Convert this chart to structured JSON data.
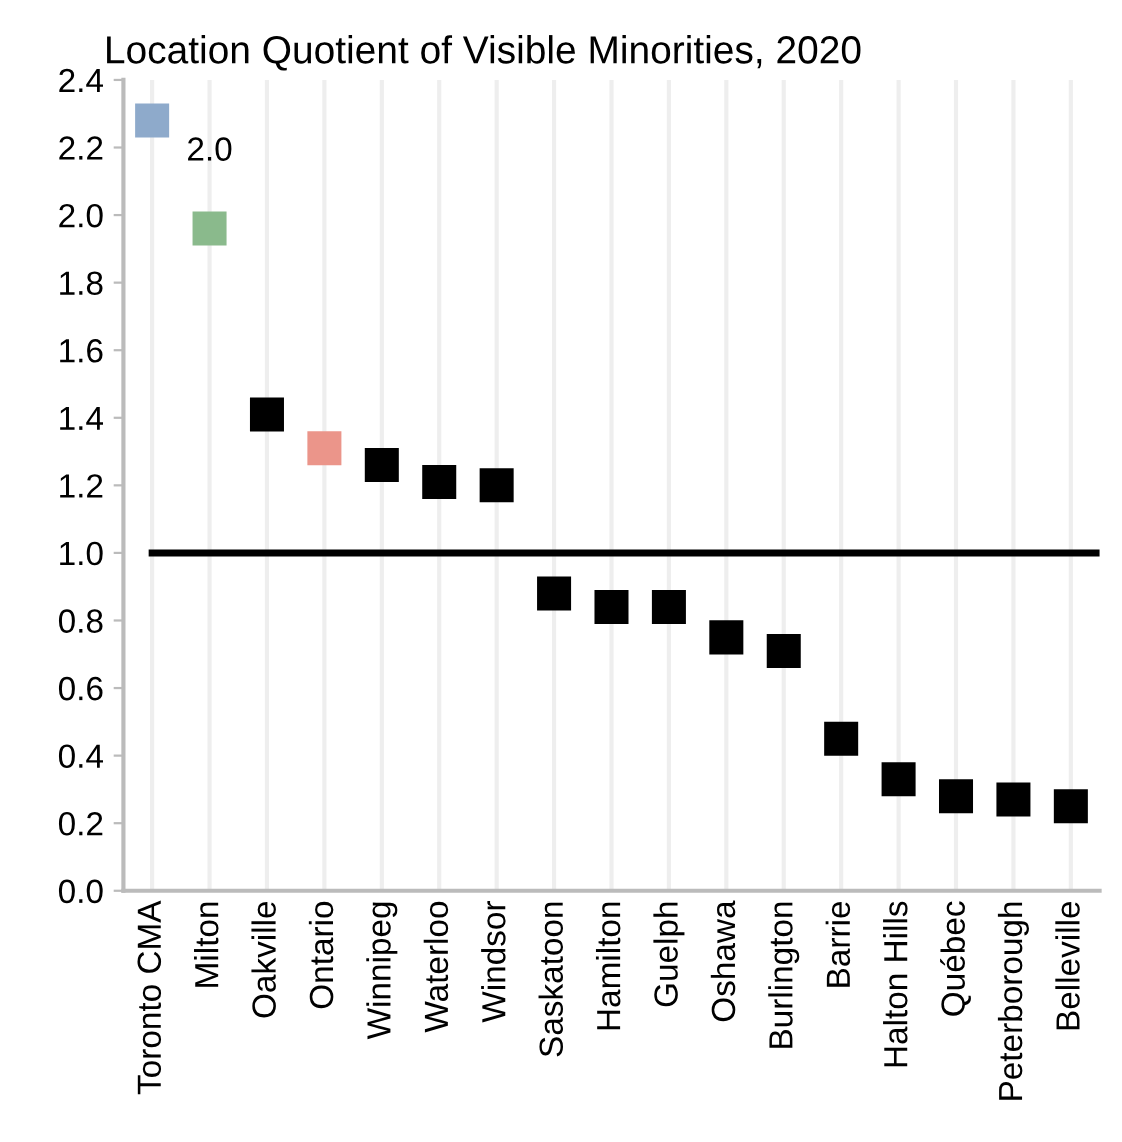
{
  "chart_data": {
    "type": "scatter",
    "title": "Location Quotient of Visible Minorities, 2020",
    "categories": [
      "Toronto CMA",
      "Milton",
      "Oakville",
      "Ontario",
      "Winnipeg",
      "Waterloo",
      "Windsor",
      "Saskatoon",
      "Hamilton",
      "Guelph",
      "Oshawa",
      "Burlington",
      "Barrie",
      "Halton Hills",
      "Québec",
      "Peterborough",
      "Belleville"
    ],
    "values": [
      2.28,
      1.96,
      1.41,
      1.31,
      1.26,
      1.21,
      1.2,
      0.88,
      0.84,
      0.84,
      0.75,
      0.71,
      0.45,
      0.33,
      0.28,
      0.27,
      0.25
    ],
    "colors": [
      "#8eaacb",
      "#8aba8c",
      "#000000",
      "#eb958a",
      "#000000",
      "#000000",
      "#000000",
      "#000000",
      "#000000",
      "#000000",
      "#000000",
      "#000000",
      "#000000",
      "#000000",
      "#000000",
      "#000000",
      "#000000"
    ],
    "marker": "square",
    "ylim": [
      0,
      2.4
    ],
    "yticks": [
      "0.0",
      0.2,
      0.4,
      0.6,
      0.8,
      "1.0",
      1.2,
      1.4,
      1.6,
      1.8,
      "2.0",
      2.2,
      2.4
    ],
    "grid": "x",
    "ref_lines": [
      {
        "axis": "y",
        "value": 1.0,
        "color": "#000000",
        "line_style": "solid"
      }
    ],
    "annotations": [
      {
        "text": "2.0",
        "x": "Milton",
        "y": 1.96
      }
    ]
  }
}
